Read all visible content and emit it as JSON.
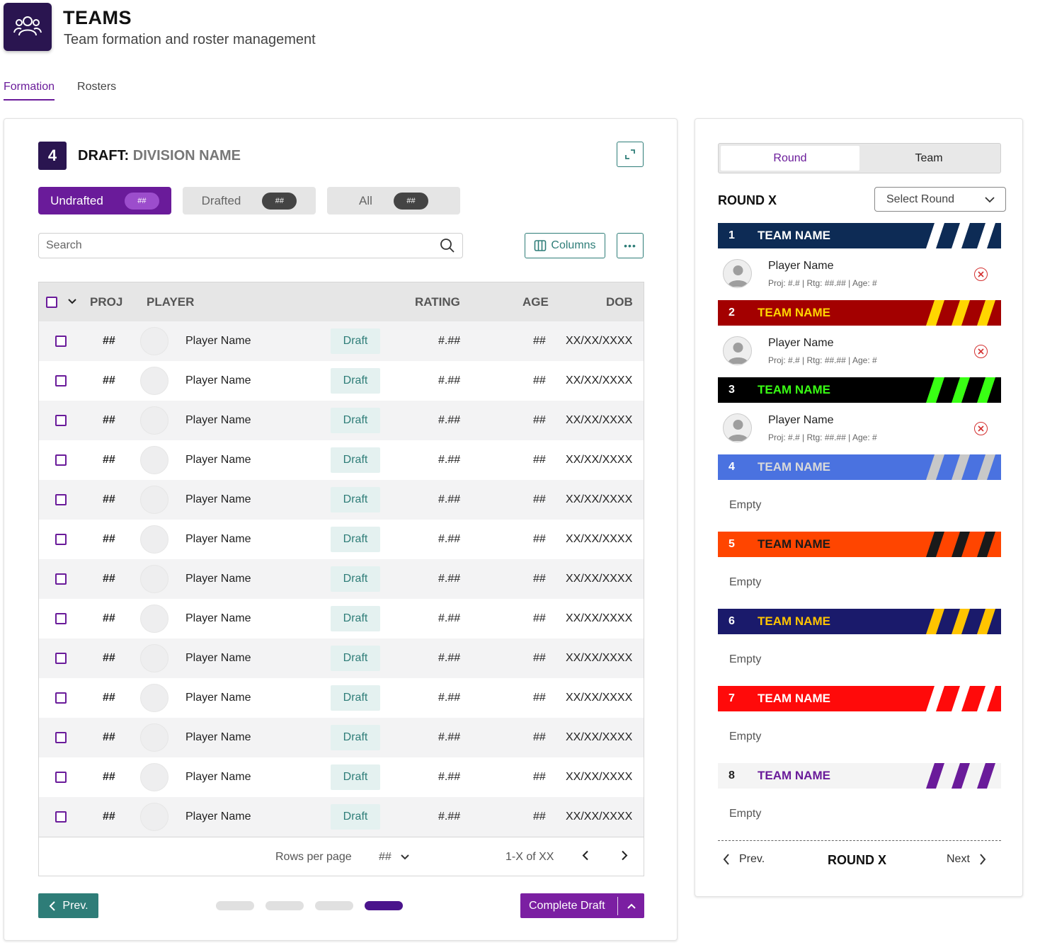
{
  "header": {
    "title": "TEAMS",
    "subtitle": "Team formation and roster management",
    "icon": "people-group-icon"
  },
  "tabs": [
    {
      "label": "Formation",
      "active": true
    },
    {
      "label": "Rosters",
      "active": false
    }
  ],
  "draft": {
    "number": "4",
    "title_prefix": "DRAFT:",
    "division": "DIVISION NAME"
  },
  "filters": [
    {
      "label": "Undrafted",
      "count": "##",
      "active": true
    },
    {
      "label": "Drafted",
      "count": "##",
      "active": false
    },
    {
      "label": "All",
      "count": "##",
      "active": false
    }
  ],
  "search": {
    "placeholder": "Search"
  },
  "toolbar": {
    "columns_label": "Columns"
  },
  "table": {
    "headers": {
      "proj": "PROJ",
      "player": "PLAYER",
      "rating": "RATING",
      "age": "AGE",
      "dob": "DOB"
    },
    "rows": [
      {
        "proj": "##",
        "name": "Player Name",
        "action": "Draft",
        "rating": "#.##",
        "age": "##",
        "dob": "XX/XX/XXXX"
      },
      {
        "proj": "##",
        "name": "Player Name",
        "action": "Draft",
        "rating": "#.##",
        "age": "##",
        "dob": "XX/XX/XXXX"
      },
      {
        "proj": "##",
        "name": "Player Name",
        "action": "Draft",
        "rating": "#.##",
        "age": "##",
        "dob": "XX/XX/XXXX"
      },
      {
        "proj": "##",
        "name": "Player Name",
        "action": "Draft",
        "rating": "#.##",
        "age": "##",
        "dob": "XX/XX/XXXX"
      },
      {
        "proj": "##",
        "name": "Player Name",
        "action": "Draft",
        "rating": "#.##",
        "age": "##",
        "dob": "XX/XX/XXXX"
      },
      {
        "proj": "##",
        "name": "Player Name",
        "action": "Draft",
        "rating": "#.##",
        "age": "##",
        "dob": "XX/XX/XXXX"
      },
      {
        "proj": "##",
        "name": "Player Name",
        "action": "Draft",
        "rating": "#.##",
        "age": "##",
        "dob": "XX/XX/XXXX"
      },
      {
        "proj": "##",
        "name": "Player Name",
        "action": "Draft",
        "rating": "#.##",
        "age": "##",
        "dob": "XX/XX/XXXX"
      },
      {
        "proj": "##",
        "name": "Player Name",
        "action": "Draft",
        "rating": "#.##",
        "age": "##",
        "dob": "XX/XX/XXXX"
      },
      {
        "proj": "##",
        "name": "Player Name",
        "action": "Draft",
        "rating": "#.##",
        "age": "##",
        "dob": "XX/XX/XXXX"
      },
      {
        "proj": "##",
        "name": "Player Name",
        "action": "Draft",
        "rating": "#.##",
        "age": "##",
        "dob": "XX/XX/XXXX"
      },
      {
        "proj": "##",
        "name": "Player Name",
        "action": "Draft",
        "rating": "#.##",
        "age": "##",
        "dob": "XX/XX/XXXX"
      },
      {
        "proj": "##",
        "name": "Player Name",
        "action": "Draft",
        "rating": "#.##",
        "age": "##",
        "dob": "XX/XX/XXXX"
      }
    ],
    "footer": {
      "rows_per_page_label": "Rows per page",
      "rows_per_page_value": "##",
      "range": "1-X of XX"
    }
  },
  "bottom": {
    "prev_label": "Prev.",
    "complete_label": "Complete Draft",
    "steps_total": 4,
    "step_active": 4
  },
  "sidebar": {
    "toggle": [
      {
        "label": "Round",
        "active": true
      },
      {
        "label": "Team",
        "active": false
      }
    ],
    "round_label": "ROUND X",
    "select_round": "Select Round",
    "teams": [
      {
        "num": "1",
        "name": "TEAM NAME",
        "bg": "#0d2b55",
        "fg": "#ffffff",
        "stripe": "#ffffff",
        "pick": {
          "name": "Player Name",
          "meta": "Proj: #.# | Rtg: ##.## | Age: #"
        }
      },
      {
        "num": "2",
        "name": "TEAM NAME",
        "bg": "#a30000",
        "fg": "#ffd600",
        "stripe": "#ffd600",
        "pick": {
          "name": "Player Name",
          "meta": "Proj: #.# | Rtg: ##.## | Age: #"
        }
      },
      {
        "num": "3",
        "name": "TEAM NAME",
        "bg": "#000000",
        "fg": "#39ff14",
        "stripe": "#39ff14",
        "pick": {
          "name": "Player Name",
          "meta": "Proj: #.# | Rtg: ##.## | Age: #"
        }
      },
      {
        "num": "4",
        "name": "TEAM NAME",
        "bg": "#4a72e0",
        "fg": "#d9d9d9",
        "stripe": "#c8c8c8",
        "empty": "Empty"
      },
      {
        "num": "5",
        "name": "TEAM NAME",
        "bg": "#ff4500",
        "fg": "#1a1a1a",
        "stripe": "#1a1a1a",
        "empty": "Empty"
      },
      {
        "num": "6",
        "name": "TEAM NAME",
        "bg": "#1a1a6b",
        "fg": "#ffc400",
        "stripe": "#ffc400",
        "empty": "Empty"
      },
      {
        "num": "7",
        "name": "TEAM NAME",
        "bg": "#ff0a0a",
        "fg": "#ffffff",
        "stripe": "#ffffff",
        "empty": "Empty"
      },
      {
        "num": "8",
        "name": "TEAM NAME",
        "bg": "#f4f4f4",
        "fg": "#6a1b9a",
        "stripe": "#6a1b9a",
        "numcolor": "#222222",
        "empty": "Empty"
      }
    ],
    "footer": {
      "prev": "Prev.",
      "round": "ROUND X",
      "next": "Next"
    }
  }
}
